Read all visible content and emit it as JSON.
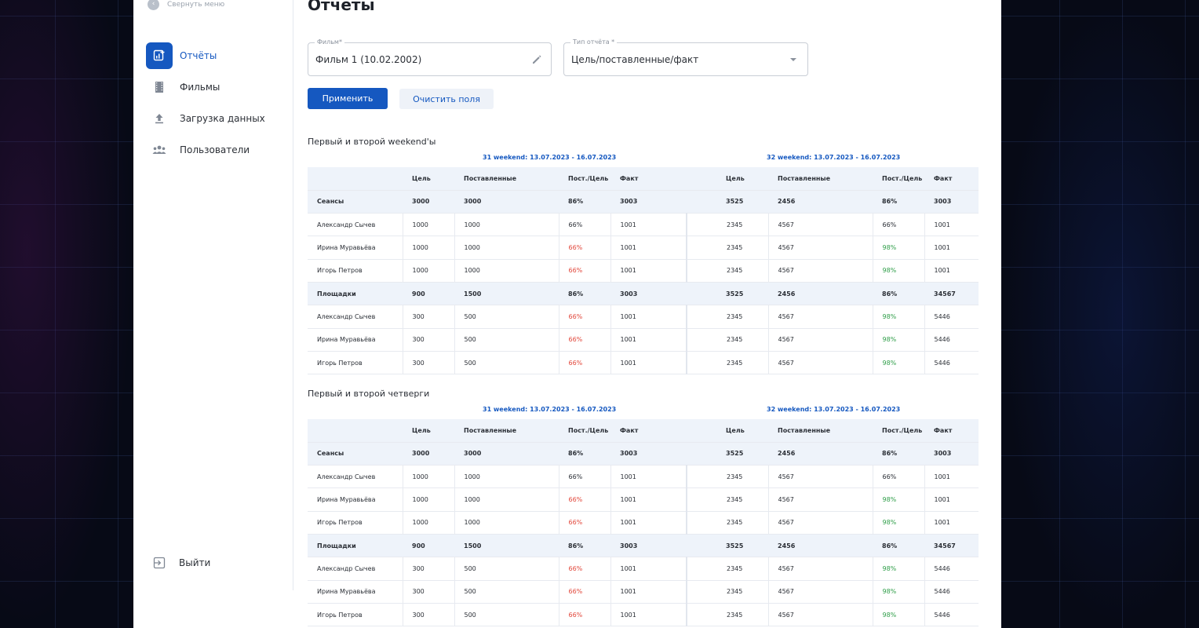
{
  "sidebar": {
    "collapse_label": "Свернуть меню",
    "items": [
      {
        "label": "Отчёты",
        "icon": "report-icon",
        "active": true
      },
      {
        "label": "Фильмы",
        "icon": "film-icon",
        "active": false
      },
      {
        "label": "Загрузка данных",
        "icon": "upload-icon",
        "active": false
      },
      {
        "label": "Пользователи",
        "icon": "users-icon",
        "active": false
      }
    ],
    "logout_label": "Выйти"
  },
  "page": {
    "title": "Отчёты"
  },
  "filters": {
    "film": {
      "label": "Фильм*",
      "value": "Фильм 1 (10.02.2002)"
    },
    "report_type": {
      "label": "Тип отчёта *",
      "value": "Цель/поставленные/факт"
    }
  },
  "actions": {
    "apply_label": "Применить",
    "clear_label": "Очистить поля"
  },
  "colors": {
    "accent": "#1558c0",
    "bad": "#e2473b",
    "good": "#2f9e49"
  },
  "columns": [
    "Цель",
    "Поставленные",
    "Пост./Цель",
    "Факт"
  ],
  "reports": [
    {
      "title": "Первый и второй weekend'ы",
      "groups": [
        "31 weekend: 13.07.2023 - 16.07.2023",
        "32 weekend: 13.07.2023 - 16.07.2023"
      ],
      "rows": [
        {
          "type": "summary",
          "label": "Сеансы",
          "a": [
            "3000",
            "3000",
            "86%",
            "3003"
          ],
          "a_status": "neutral",
          "b": [
            "3525",
            "2456",
            "86%",
            "3003"
          ],
          "b_status": "neutral"
        },
        {
          "type": "person",
          "label": "Александр Сычев",
          "a": [
            "1000",
            "1000",
            "66%",
            "1001"
          ],
          "a_status": "neutral",
          "b": [
            "2345",
            "4567",
            "66%",
            "1001"
          ],
          "b_status": "neutral"
        },
        {
          "type": "person",
          "label": "Ирина Муравьёва",
          "a": [
            "1000",
            "1000",
            "66%",
            "1001"
          ],
          "a_status": "red",
          "b": [
            "2345",
            "4567",
            "98%",
            "1001"
          ],
          "b_status": "green"
        },
        {
          "type": "person",
          "label": "Игорь Петров",
          "a": [
            "1000",
            "1000",
            "66%",
            "1001"
          ],
          "a_status": "red",
          "b": [
            "2345",
            "4567",
            "98%",
            "1001"
          ],
          "b_status": "green"
        },
        {
          "type": "summary",
          "label": "Площадки",
          "a": [
            "900",
            "1500",
            "86%",
            "3003"
          ],
          "a_status": "neutral",
          "b": [
            "3525",
            "2456",
            "86%",
            "34567"
          ],
          "b_status": "neutral"
        },
        {
          "type": "person",
          "label": "Александр Сычев",
          "a": [
            "300",
            "500",
            "66%",
            "1001"
          ],
          "a_status": "red",
          "b": [
            "2345",
            "4567",
            "98%",
            "5446"
          ],
          "b_status": "green"
        },
        {
          "type": "person",
          "label": "Ирина Муравьёва",
          "a": [
            "300",
            "500",
            "66%",
            "1001"
          ],
          "a_status": "red",
          "b": [
            "2345",
            "4567",
            "98%",
            "5446"
          ],
          "b_status": "green"
        },
        {
          "type": "person",
          "label": "Игорь Петров",
          "a": [
            "300",
            "500",
            "66%",
            "1001"
          ],
          "a_status": "red",
          "b": [
            "2345",
            "4567",
            "98%",
            "5446"
          ],
          "b_status": "green"
        }
      ]
    },
    {
      "title": "Первый и второй четверги",
      "groups": [
        "31 weekend: 13.07.2023 - 16.07.2023",
        "32 weekend: 13.07.2023 - 16.07.2023"
      ],
      "rows": [
        {
          "type": "summary",
          "label": "Сеансы",
          "a": [
            "3000",
            "3000",
            "86%",
            "3003"
          ],
          "a_status": "neutral",
          "b": [
            "3525",
            "2456",
            "86%",
            "3003"
          ],
          "b_status": "neutral"
        },
        {
          "type": "person",
          "label": "Александр Сычев",
          "a": [
            "1000",
            "1000",
            "66%",
            "1001"
          ],
          "a_status": "neutral",
          "b": [
            "2345",
            "4567",
            "66%",
            "1001"
          ],
          "b_status": "neutral"
        },
        {
          "type": "person",
          "label": "Ирина Муравьёва",
          "a": [
            "1000",
            "1000",
            "66%",
            "1001"
          ],
          "a_status": "red",
          "b": [
            "2345",
            "4567",
            "98%",
            "1001"
          ],
          "b_status": "green"
        },
        {
          "type": "person",
          "label": "Игорь Петров",
          "a": [
            "1000",
            "1000",
            "66%",
            "1001"
          ],
          "a_status": "red",
          "b": [
            "2345",
            "4567",
            "98%",
            "1001"
          ],
          "b_status": "green"
        },
        {
          "type": "summary",
          "label": "Площадки",
          "a": [
            "900",
            "1500",
            "86%",
            "3003"
          ],
          "a_status": "neutral",
          "b": [
            "3525",
            "2456",
            "86%",
            "34567"
          ],
          "b_status": "neutral"
        },
        {
          "type": "person",
          "label": "Александр Сычев",
          "a": [
            "300",
            "500",
            "66%",
            "1001"
          ],
          "a_status": "red",
          "b": [
            "2345",
            "4567",
            "98%",
            "5446"
          ],
          "b_status": "green"
        },
        {
          "type": "person",
          "label": "Ирина Муравьёва",
          "a": [
            "300",
            "500",
            "66%",
            "1001"
          ],
          "a_status": "red",
          "b": [
            "2345",
            "4567",
            "98%",
            "5446"
          ],
          "b_status": "green"
        },
        {
          "type": "person",
          "label": "Игорь Петров",
          "a": [
            "300",
            "500",
            "66%",
            "1001"
          ],
          "a_status": "red",
          "b": [
            "2345",
            "4567",
            "98%",
            "5446"
          ],
          "b_status": "green"
        }
      ]
    }
  ]
}
